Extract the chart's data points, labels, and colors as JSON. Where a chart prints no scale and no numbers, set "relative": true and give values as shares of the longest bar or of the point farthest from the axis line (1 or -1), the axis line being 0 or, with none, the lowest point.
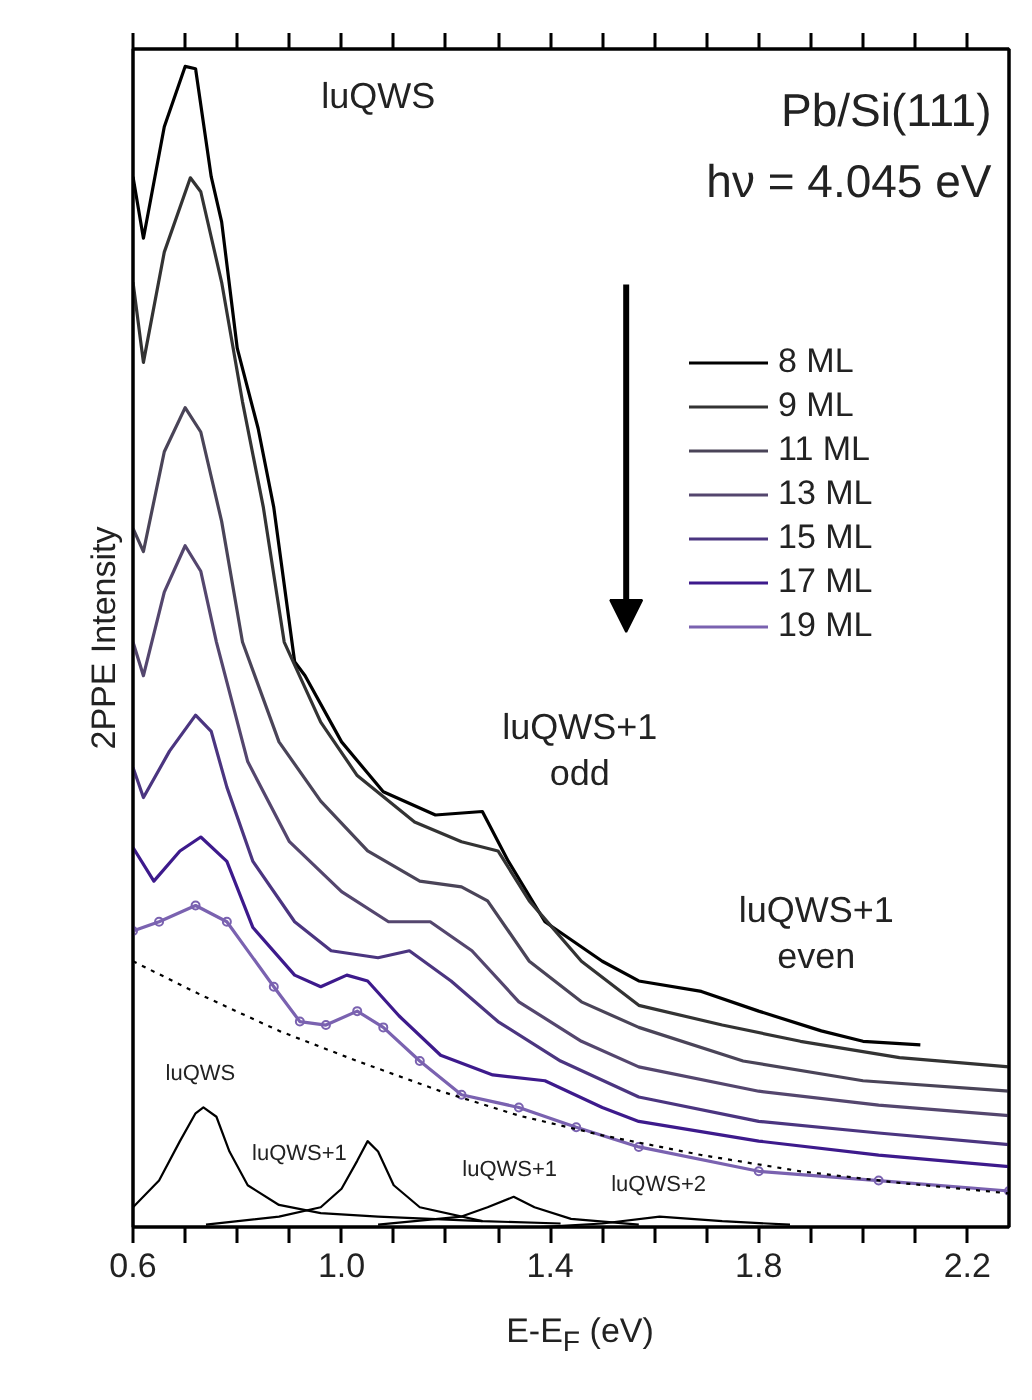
{
  "chart_data": {
    "type": "line",
    "relative": true,
    "title": "Pb/Si(111)",
    "subtitle": "hν = 4.045 eV",
    "xlabel": "E-E$_{F}$ (eV)",
    "ylabel": "2PPE Intensity",
    "xlim": [
      0.6,
      2.28
    ],
    "xticks": [
      0.6,
      {
        "value": 0.7,
        "label": null
      },
      {
        "value": 0.8,
        "label": null
      },
      {
        "value": 0.9,
        "label": null
      },
      {
        "value": 1.0,
        "label": "1.0"
      },
      {
        "value": 1.1,
        "label": null
      },
      {
        "value": 1.2,
        "label": null
      },
      {
        "value": 1.3,
        "label": null
      },
      1.4,
      {
        "value": 1.5,
        "label": null
      },
      {
        "value": 1.6,
        "label": null
      },
      {
        "value": 1.7,
        "label": null
      },
      1.8,
      {
        "value": 1.9,
        "label": null
      },
      {
        "value": 2.0,
        "label": null
      },
      {
        "value": 2.1,
        "label": null
      },
      2.2
    ],
    "grid": false,
    "legend": "top right",
    "line_style": "solid",
    "marker": "none",
    "series": [
      {
        "name": "8 ML",
        "color": "#000000",
        "x": [
          0.6,
          0.62,
          0.66,
          0.7,
          0.72,
          0.75,
          0.77,
          0.8,
          0.84,
          0.87,
          0.91,
          0.93,
          1.0,
          1.08,
          1.18,
          1.27,
          1.32,
          1.39,
          1.5,
          1.57,
          1.69,
          1.8,
          1.92,
          2.0,
          2.11
        ],
        "values": [
          0.905,
          0.852,
          0.948,
          1.0,
          0.998,
          0.905,
          0.866,
          0.757,
          0.688,
          0.62,
          0.487,
          0.475,
          0.418,
          0.375,
          0.355,
          0.358,
          0.315,
          0.263,
          0.229,
          0.212,
          0.203,
          0.186,
          0.169,
          0.16,
          0.157
        ]
      },
      {
        "name": "9 ML",
        "color": "#333333",
        "x": [
          0.6,
          0.62,
          0.66,
          0.71,
          0.73,
          0.77,
          0.81,
          0.85,
          0.89,
          0.96,
          1.03,
          1.14,
          1.23,
          1.3,
          1.36,
          1.46,
          1.57,
          1.73,
          1.88,
          2.07,
          2.28
        ],
        "values": [
          0.814,
          0.745,
          0.84,
          0.904,
          0.892,
          0.814,
          0.711,
          0.62,
          0.504,
          0.435,
          0.389,
          0.349,
          0.332,
          0.324,
          0.281,
          0.229,
          0.191,
          0.174,
          0.16,
          0.146,
          0.138
        ]
      },
      {
        "name": "11 ML",
        "color": "#4a4458",
        "x": [
          0.6,
          0.62,
          0.66,
          0.7,
          0.73,
          0.77,
          0.81,
          0.88,
          0.96,
          1.05,
          1.15,
          1.23,
          1.28,
          1.36,
          1.46,
          1.57,
          1.77,
          2.0,
          2.28
        ],
        "values": [
          0.602,
          0.582,
          0.668,
          0.706,
          0.685,
          0.608,
          0.504,
          0.418,
          0.367,
          0.324,
          0.298,
          0.293,
          0.281,
          0.229,
          0.194,
          0.172,
          0.143,
          0.126,
          0.117
        ]
      },
      {
        "name": "13 ML",
        "color": "#54466e",
        "x": [
          0.6,
          0.62,
          0.66,
          0.7,
          0.73,
          0.76,
          0.82,
          0.9,
          1.0,
          1.09,
          1.17,
          1.25,
          1.34,
          1.46,
          1.57,
          1.8,
          2.03,
          2.28
        ],
        "values": [
          0.504,
          0.475,
          0.547,
          0.587,
          0.565,
          0.504,
          0.401,
          0.332,
          0.289,
          0.263,
          0.263,
          0.238,
          0.194,
          0.16,
          0.138,
          0.117,
          0.105,
          0.096
        ]
      },
      {
        "name": "15 ML",
        "color": "#4b3580",
        "x": [
          0.6,
          0.62,
          0.67,
          0.72,
          0.75,
          0.78,
          0.83,
          0.91,
          0.98,
          1.07,
          1.13,
          1.21,
          1.3,
          1.42,
          1.57,
          1.8,
          2.03,
          2.28
        ],
        "values": [
          0.396,
          0.37,
          0.41,
          0.441,
          0.427,
          0.379,
          0.315,
          0.263,
          0.238,
          0.232,
          0.238,
          0.212,
          0.177,
          0.143,
          0.112,
          0.091,
          0.081,
          0.071
        ]
      },
      {
        "name": "17 ML",
        "color": "#3d1a8c",
        "x": [
          0.6,
          0.64,
          0.69,
          0.73,
          0.78,
          0.83,
          0.91,
          0.96,
          1.01,
          1.05,
          1.11,
          1.19,
          1.29,
          1.39,
          1.5,
          1.57,
          1.8,
          2.03,
          2.28
        ],
        "values": [
          0.327,
          0.298,
          0.324,
          0.336,
          0.315,
          0.258,
          0.217,
          0.207,
          0.217,
          0.212,
          0.182,
          0.148,
          0.131,
          0.126,
          0.103,
          0.091,
          0.074,
          0.062,
          0.052
        ]
      },
      {
        "name": "19 ML",
        "color": "#7a62b0",
        "marker": "circle",
        "x": [
          0.6,
          0.65,
          0.72,
          0.78,
          0.87,
          0.92,
          0.97,
          1.03,
          1.08,
          1.15,
          1.23,
          1.34,
          1.45,
          1.57,
          1.8,
          2.03,
          2.28
        ],
        "values": [
          0.255,
          0.263,
          0.277,
          0.263,
          0.207,
          0.177,
          0.174,
          0.186,
          0.172,
          0.143,
          0.114,
          0.103,
          0.086,
          0.069,
          0.048,
          0.04,
          0.031
        ]
      },
      {
        "color": "#000000",
        "line_style": "dotted",
        "x": [
          0.6,
          0.73,
          0.88,
          1.03,
          1.19,
          1.34,
          1.5,
          1.69,
          1.88,
          2.07,
          2.28
        ],
        "values": [
          0.229,
          0.2,
          0.169,
          0.143,
          0.117,
          0.096,
          0.079,
          0.062,
          0.048,
          0.038,
          0.029
        ]
      },
      {
        "color": "#000000",
        "x": [
          0.6,
          0.65,
          0.69,
          0.72,
          0.735,
          0.76,
          0.785,
          0.82,
          0.88,
          0.96,
          1.07,
          1.27
        ],
        "values": [
          0.017,
          0.04,
          0.074,
          0.098,
          0.103,
          0.095,
          0.065,
          0.036,
          0.019,
          0.012,
          0.009,
          0.005
        ]
      },
      {
        "color": "#000000",
        "x": [
          0.74,
          0.88,
          0.96,
          1.0,
          1.03,
          1.05,
          1.07,
          1.1,
          1.15,
          1.27,
          1.42
        ],
        "values": [
          0.002,
          0.009,
          0.017,
          0.033,
          0.057,
          0.074,
          0.065,
          0.036,
          0.017,
          0.005,
          0.003
        ]
      },
      {
        "color": "#000000",
        "x": [
          1.07,
          1.23,
          1.28,
          1.33,
          1.37,
          1.44,
          1.57
        ],
        "values": [
          0.002,
          0.009,
          0.017,
          0.026,
          0.017,
          0.007,
          0.002
        ]
      },
      {
        "color": "#000000",
        "x": [
          1.38,
          1.5,
          1.61,
          1.73,
          1.86
        ],
        "values": [
          0.0,
          0.003,
          0.009,
          0.005,
          0.002
        ]
      }
    ],
    "annotations": [
      "luQWS",
      "luQWS+1\nodd",
      "luQWS+1\neven",
      "luQWS",
      "luQWS+1",
      "luQWS+1",
      "luQWS+2"
    ]
  }
}
